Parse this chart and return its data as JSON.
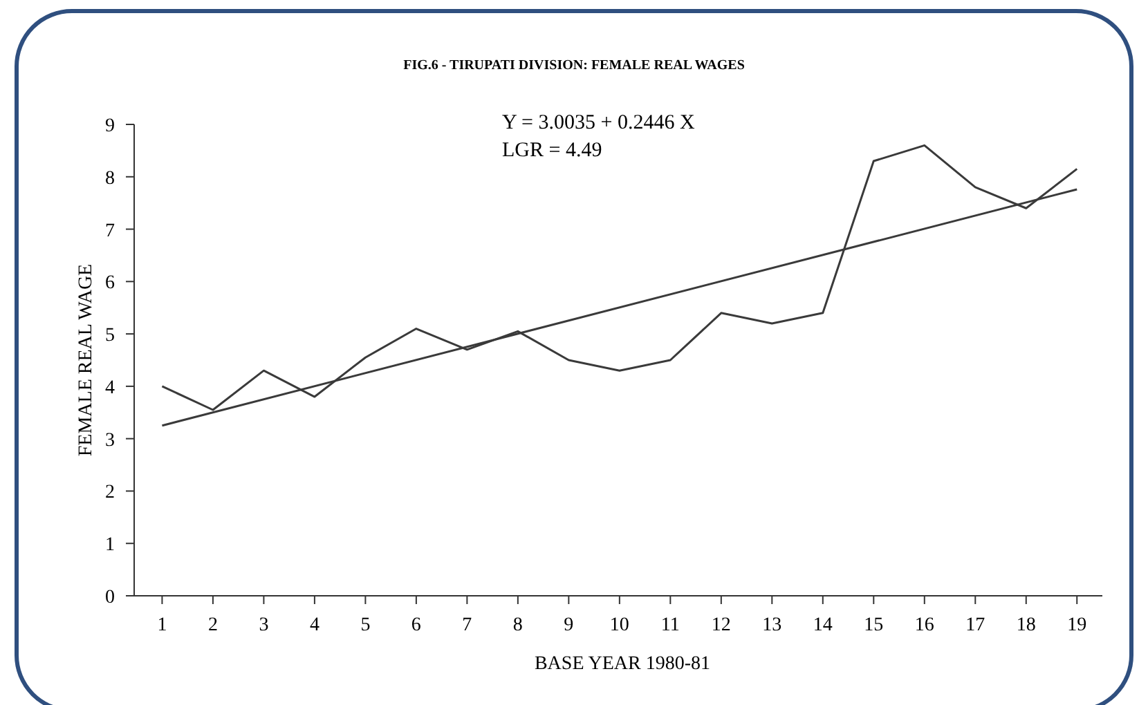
{
  "chart_data": {
    "type": "line",
    "title": "FIG.6 - TIRUPATI DIVISION: FEMALE REAL WAGES",
    "xlabel": "BASE YEAR 1980-81",
    "ylabel": "FEMALE REAL WAGE",
    "annotations": [
      "Y = 3.0035 + 0.2446 X",
      "LGR = 4.49"
    ],
    "x": [
      1,
      2,
      3,
      4,
      5,
      6,
      7,
      8,
      9,
      10,
      11,
      12,
      13,
      14,
      15,
      16,
      17,
      18,
      19
    ],
    "series": [
      {
        "color": "#3a3a3a",
        "values": [
          4.0,
          3.55,
          4.3,
          3.8,
          4.55,
          5.1,
          4.7,
          5.05,
          4.5,
          4.3,
          4.5,
          5.4,
          5.2,
          5.4,
          8.3,
          8.6,
          7.8,
          7.4,
          8.15
        ]
      },
      {
        "type": "line",
        "color": "#3a3a3a",
        "x": [
          1,
          19
        ],
        "values": [
          3.25,
          7.76
        ]
      }
    ],
    "xlim": [
      0.45,
      19.5
    ],
    "xticks": [
      1,
      2,
      3,
      4,
      5,
      6,
      7,
      8,
      9,
      10,
      11,
      12,
      13,
      14,
      15,
      16,
      17,
      18,
      19
    ],
    "ylim": [
      0,
      9
    ],
    "yticks": [
      0,
      1,
      2,
      3,
      4,
      5,
      6,
      7,
      8,
      9
    ],
    "grid": false,
    "marker": "none",
    "line_style": "solid"
  }
}
